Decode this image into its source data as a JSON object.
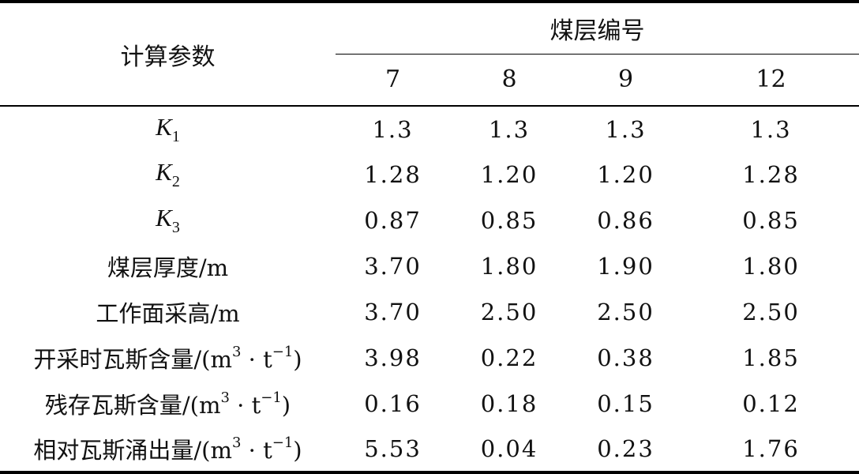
{
  "table": {
    "header": {
      "param_col": "计算参数",
      "group": "煤层编号",
      "seams": [
        "7",
        "8",
        "9",
        "12"
      ]
    },
    "rows": [
      {
        "label_sym": "K",
        "label_sub": "1",
        "values": [
          "1.3",
          "1.3",
          "1.3",
          "1.3"
        ]
      },
      {
        "label_sym": "K",
        "label_sub": "2",
        "values": [
          "1.28",
          "1.20",
          "1.20",
          "1.28"
        ]
      },
      {
        "label_sym": "K",
        "label_sub": "3",
        "values": [
          "0.87",
          "0.85",
          "0.86",
          "0.85"
        ]
      },
      {
        "label": "煤层厚度/m",
        "values": [
          "3.70",
          "1.80",
          "1.90",
          "1.80"
        ]
      },
      {
        "label": "工作面采高/m",
        "values": [
          "3.70",
          "2.50",
          "2.50",
          "2.50"
        ]
      },
      {
        "label": "开采时瓦斯含量/",
        "unit_open": "(m",
        "unit_exp1": "3",
        "unit_mid": " · t",
        "unit_exp2": "−1",
        "unit_close": ")",
        "values": [
          "3.98",
          "0.22",
          "0.38",
          "1.85"
        ]
      },
      {
        "label": "残存瓦斯含量/",
        "unit_open": "(m",
        "unit_exp1": "3",
        "unit_mid": " · t",
        "unit_exp2": "−1",
        "unit_close": ")",
        "values": [
          "0.16",
          "0.18",
          "0.15",
          "0.12"
        ]
      },
      {
        "label": "相对瓦斯涌出量/",
        "unit_open": "(m",
        "unit_exp1": "3",
        "unit_mid": " · t",
        "unit_exp2": "−1",
        "unit_close": ")",
        "values": [
          "5.53",
          "0.04",
          "0.23",
          "1.76"
        ]
      }
    ]
  }
}
